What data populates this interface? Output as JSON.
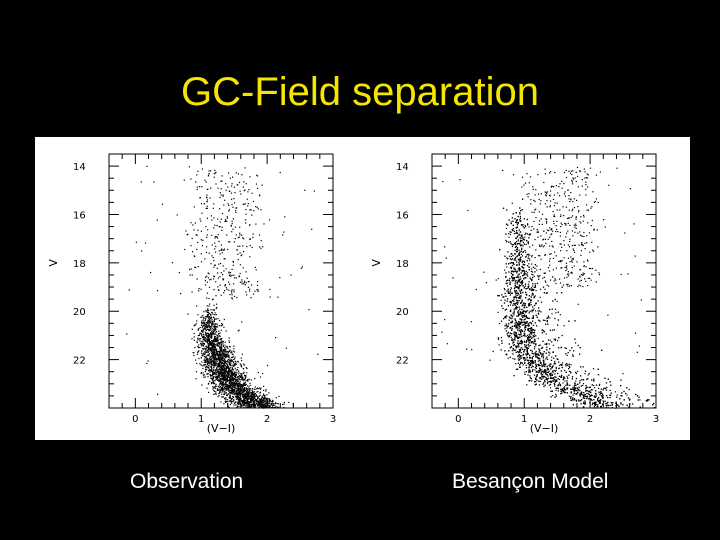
{
  "slide": {
    "title": "GC-Field separation",
    "colors": {
      "background": "#000000",
      "title": "#f5e500",
      "caption": "#ffffff",
      "figure_background": "#ffffff"
    }
  },
  "captions": {
    "left": "Observation",
    "right": "Besançon Model"
  },
  "chart_data": [
    {
      "type": "scatter",
      "panel": "left",
      "title": "",
      "xlabel": "(V−I)",
      "ylabel": "V",
      "xlim": [
        -0.4,
        3
      ],
      "ylim": [
        24.0,
        13.5
      ],
      "y_inverted": true,
      "xticks": [
        "0",
        "1",
        "2",
        "3"
      ],
      "yticks": [
        "14",
        "16",
        "18",
        "20",
        "22"
      ],
      "grid": false,
      "series": [
        {
          "color": "#000000",
          "distribution": {
            "description": "dense curved sequence from about (V-I)=1.1,V=19.8 down to (V-I)=1.9,V=24; sparse plume above",
            "ridge": [
              [
                1.1,
                19.8
              ],
              [
                1.1,
                20.5
              ],
              [
                1.15,
                21.2
              ],
              [
                1.25,
                22.0
              ],
              [
                1.4,
                22.8
              ],
              [
                1.6,
                23.4
              ],
              [
                1.9,
                24.0
              ]
            ],
            "sparse_plume": {
              "x_range": [
                0.9,
                1.8
              ],
              "v_range": [
                14.0,
                19.5
              ]
            }
          }
        }
      ]
    },
    {
      "type": "scatter",
      "panel": "right",
      "title": "",
      "xlabel": "(V−I)",
      "ylabel": "V",
      "xlim": [
        -0.4,
        3
      ],
      "ylim": [
        24.0,
        13.5
      ],
      "y_inverted": true,
      "xticks": [
        "0",
        "1",
        "2",
        "3"
      ],
      "yticks": [
        "14",
        "16",
        "18",
        "20",
        "22"
      ],
      "grid": false,
      "series": [
        {
          "color": "#000000",
          "distribution": {
            "description": "narrow dense vertical branch near (V-I)=0.9 from V=15.5 downward, curving red to (V-I)=2.3 at V=24",
            "ridge": [
              [
                0.85,
                15.5
              ],
              [
                0.88,
                17.5
              ],
              [
                0.9,
                19.5
              ],
              [
                0.95,
                21.0
              ],
              [
                1.1,
                22.0
              ],
              [
                1.4,
                22.8
              ],
              [
                1.9,
                23.5
              ],
              [
                2.3,
                24.0
              ]
            ],
            "sparse_plume": {
              "x_range": [
                1.0,
                2.0
              ],
              "v_range": [
                14.0,
                19.0
              ]
            }
          }
        }
      ]
    }
  ]
}
